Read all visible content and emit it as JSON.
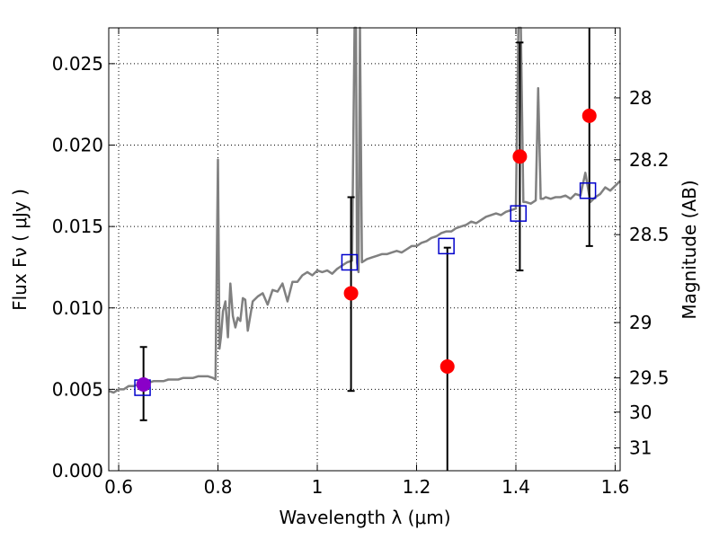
{
  "chart_data": {
    "type": "scatter",
    "xlabel": "Wavelength  λ (μm)",
    "ylabel": "Flux  Fν  ( μJy )",
    "ylabel_right": "Magnitude (AB)",
    "xlim": [
      0.58,
      1.61
    ],
    "ylim": [
      0.0,
      0.0272
    ],
    "grid": "dotted",
    "x_ticks": [
      {
        "value": 0.6,
        "label": "0.6"
      },
      {
        "value": 0.8,
        "label": "0.8"
      },
      {
        "value": 1.0,
        "label": "1"
      },
      {
        "value": 1.2,
        "label": "1.2"
      },
      {
        "value": 1.4,
        "label": "1.4"
      },
      {
        "value": 1.6,
        "label": "1.6"
      }
    ],
    "y_ticks": [
      {
        "value": 0.0,
        "label": "0.000"
      },
      {
        "value": 0.005,
        "label": "0.005"
      },
      {
        "value": 0.01,
        "label": "0.010"
      },
      {
        "value": 0.015,
        "label": "0.015"
      },
      {
        "value": 0.02,
        "label": "0.020"
      },
      {
        "value": 0.025,
        "label": "0.025"
      }
    ],
    "y_ticks_right": [
      {
        "label": "28",
        "flux": 0.0229
      },
      {
        "label": "28.2",
        "flux": 0.0191
      },
      {
        "label": "28.5",
        "flux": 0.0145
      },
      {
        "label": "29",
        "flux": 0.0091
      },
      {
        "label": "29.5",
        "flux": 0.0057
      },
      {
        "label": "30",
        "flux": 0.0036
      },
      {
        "label": "31",
        "flux": 0.0014
      }
    ],
    "colors": {
      "spectrum": "#808080",
      "model": "#0000cc",
      "observed": "#ff0000",
      "overlap": "#8a00c8",
      "errorbar": "#000000"
    },
    "series": [
      {
        "kind": "spectrum",
        "x": [
          0.58,
          0.59,
          0.6,
          0.61,
          0.62,
          0.63,
          0.64,
          0.65,
          0.66,
          0.67,
          0.68,
          0.69,
          0.7,
          0.71,
          0.72,
          0.73,
          0.74,
          0.75,
          0.76,
          0.77,
          0.78,
          0.79,
          0.795,
          0.8,
          0.803,
          0.806,
          0.81,
          0.815,
          0.82,
          0.825,
          0.83,
          0.835,
          0.84,
          0.845,
          0.85,
          0.855,
          0.86,
          0.87,
          0.88,
          0.89,
          0.9,
          0.91,
          0.92,
          0.93,
          0.94,
          0.95,
          0.96,
          0.97,
          0.98,
          0.99,
          1.0,
          1.01,
          1.02,
          1.03,
          1.04,
          1.05,
          1.06,
          1.07,
          1.075,
          1.078,
          1.08,
          1.083,
          1.086,
          1.09,
          1.1,
          1.11,
          1.12,
          1.13,
          1.14,
          1.15,
          1.16,
          1.17,
          1.18,
          1.19,
          1.2,
          1.21,
          1.22,
          1.23,
          1.24,
          1.25,
          1.26,
          1.27,
          1.28,
          1.29,
          1.3,
          1.31,
          1.32,
          1.33,
          1.34,
          1.35,
          1.36,
          1.37,
          1.38,
          1.39,
          1.4,
          1.405,
          1.41,
          1.415,
          1.42,
          1.43,
          1.44,
          1.445,
          1.45,
          1.455,
          1.46,
          1.47,
          1.48,
          1.49,
          1.5,
          1.51,
          1.52,
          1.53,
          1.54,
          1.55,
          1.56,
          1.57,
          1.58,
          1.59,
          1.6,
          1.61
        ],
        "y": [
          0.0049,
          0.0048,
          0.005,
          0.005,
          0.0052,
          0.0052,
          0.0053,
          0.0054,
          0.0054,
          0.0055,
          0.0055,
          0.0055,
          0.0056,
          0.0056,
          0.0056,
          0.0057,
          0.0057,
          0.0057,
          0.0058,
          0.0058,
          0.0058,
          0.0057,
          0.0056,
          0.0191,
          0.0075,
          0.0082,
          0.0098,
          0.0104,
          0.0082,
          0.0115,
          0.0095,
          0.0088,
          0.0094,
          0.0092,
          0.0106,
          0.0105,
          0.0086,
          0.0104,
          0.0107,
          0.0109,
          0.0102,
          0.0111,
          0.011,
          0.0115,
          0.0104,
          0.0116,
          0.0116,
          0.012,
          0.0122,
          0.012,
          0.0123,
          0.0122,
          0.0123,
          0.0121,
          0.0124,
          0.0126,
          0.0128,
          0.0129,
          0.0272,
          0.0272,
          0.0128,
          0.0122,
          0.0272,
          0.0128,
          0.013,
          0.0131,
          0.0132,
          0.0133,
          0.0133,
          0.0134,
          0.0135,
          0.0134,
          0.0136,
          0.0138,
          0.0138,
          0.014,
          0.0141,
          0.0143,
          0.0144,
          0.0146,
          0.0147,
          0.0147,
          0.0149,
          0.015,
          0.0151,
          0.0153,
          0.0152,
          0.0154,
          0.0156,
          0.0157,
          0.0158,
          0.0157,
          0.0159,
          0.016,
          0.0161,
          0.0272,
          0.0272,
          0.0165,
          0.0165,
          0.0164,
          0.0166,
          0.0235,
          0.0167,
          0.0167,
          0.0168,
          0.0167,
          0.0168,
          0.0168,
          0.0169,
          0.0167,
          0.017,
          0.0169,
          0.0183,
          0.0165,
          0.0168,
          0.017,
          0.0174,
          0.0172,
          0.0175,
          0.0178
        ]
      },
      {
        "kind": "model",
        "name": "",
        "marker": "open-square",
        "x": [
          0.648,
          1.065,
          1.26,
          1.405,
          1.545
        ],
        "y": [
          0.0051,
          0.0128,
          0.0138,
          0.0158,
          0.0172
        ]
      },
      {
        "kind": "observed",
        "name": "",
        "marker": "filled-circle",
        "x": [
          0.65,
          1.068,
          1.262,
          1.408,
          1.548
        ],
        "y": [
          0.0053,
          0.0109,
          0.0064,
          0.0193,
          0.0218
        ],
        "err_low": [
          0.0031,
          0.0049,
          0.0,
          0.0123,
          0.0138
        ],
        "err_high": [
          0.0076,
          0.0168,
          0.0137,
          0.0263,
          0.0272
        ]
      }
    ]
  }
}
